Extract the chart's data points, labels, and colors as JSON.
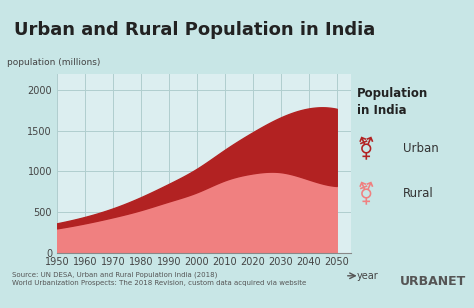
{
  "title": "Urban and Rural Population in India",
  "ylabel": "population (millions)",
  "xlabel": "year",
  "bg_color": "#c8e6e6",
  "title_bg_color": "#dceef0",
  "plot_bg_color": "#dceef0",
  "urban_color": "#b22222",
  "rural_color": "#f08080",
  "grid_color": "#b0cece",
  "years": [
    1950,
    1960,
    1970,
    1980,
    1990,
    2000,
    2010,
    2020,
    2030,
    2040,
    2050
  ],
  "urban": [
    62,
    79,
    109,
    159,
    217,
    290,
    377,
    507,
    675,
    875,
    950
  ],
  "rural": [
    298,
    360,
    435,
    523,
    629,
    742,
    889,
    975,
    990,
    900,
    820
  ],
  "ylim": [
    0,
    2200
  ],
  "yticks": [
    0,
    500,
    1000,
    1500,
    2000
  ],
  "source_text": "Source: UN DESA, Urban and Rural Population India (2018)\nWorld Urbanization Prospects: The 2018 Revision, custom data acquired via website",
  "legend_title": "Population\nin India",
  "legend_urban": "Urban",
  "legend_rural": "Rural"
}
